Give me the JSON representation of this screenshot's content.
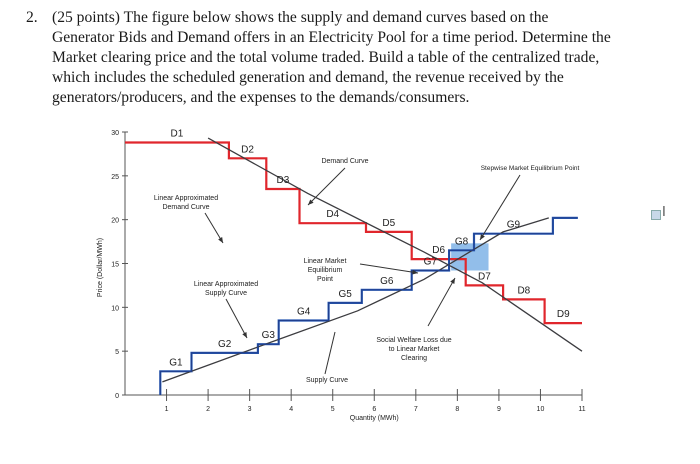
{
  "question": {
    "number": "2.",
    "lines": [
      "(25 points) The figure below shows the supply and demand curves based on the",
      "Generator Bids and Demand offers in an Electricity Pool for a time period. Determine the",
      "Market clearing price and the total volume traded. Build a table of the centralized trade,",
      "which includes the scheduled generation and demand, the revenue received by the",
      "generators/producers, and the expenses to the demands/consumers."
    ]
  },
  "chart_data": {
    "type": "line",
    "xlabel": "Quantity (MWh)",
    "ylabel": "Price (Dollar/MWh)",
    "xlim": [
      0,
      11
    ],
    "ylim": [
      0,
      30
    ],
    "x_ticks": [
      "1",
      "2",
      "3",
      "4",
      "5",
      "6",
      "7",
      "8",
      "9",
      "10",
      "11"
    ],
    "y_ticks": [
      "0",
      "5",
      "10",
      "15",
      "20",
      "25",
      "30"
    ],
    "colors": {
      "stepwise": "#e0262c",
      "linear": "#3c3c40",
      "shaded": "#7fb3e6",
      "axis": "#555555"
    },
    "series": [
      {
        "name": "Demand Curve",
        "step_labels": [
          "D1",
          "D2",
          "D3",
          "D4",
          "D5",
          "D6",
          "D7",
          "D8",
          "D9"
        ],
        "points": [
          [
            0,
            28.8
          ],
          [
            2.5,
            28.8
          ],
          [
            2.5,
            27
          ],
          [
            3.4,
            27
          ],
          [
            3.4,
            23.5
          ],
          [
            4.2,
            23.5
          ],
          [
            4.2,
            19.6
          ],
          [
            5.8,
            19.6
          ],
          [
            5.8,
            18.6
          ],
          [
            6.9,
            18.6
          ],
          [
            6.9,
            15.5
          ],
          [
            8.2,
            15.5
          ],
          [
            8.2,
            12.5
          ],
          [
            9.1,
            12.5
          ],
          [
            9.1,
            10.9
          ],
          [
            10.1,
            10.9
          ],
          [
            10.1,
            8.2
          ],
          [
            11,
            8.2
          ]
        ]
      },
      {
        "name": "Supply",
        "step_labels": [
          "G1",
          "G2",
          "G3",
          "G4",
          "G5",
          "G6",
          "G7",
          "G8",
          "G9"
        ],
        "points": [
          [
            0.85,
            0
          ],
          [
            0.85,
            2.7
          ],
          [
            1.6,
            2.7
          ],
          [
            1.6,
            4.8
          ],
          [
            3.2,
            4.8
          ],
          [
            3.2,
            5.8
          ],
          [
            3.7,
            5.8
          ],
          [
            3.7,
            8.5
          ],
          [
            4.9,
            8.5
          ],
          [
            4.9,
            10.5
          ],
          [
            5.7,
            10.5
          ],
          [
            5.7,
            12.0
          ],
          [
            6.9,
            12.0
          ],
          [
            6.9,
            14.2
          ],
          [
            7.8,
            14.2
          ],
          [
            7.8,
            16.5
          ],
          [
            8.4,
            16.5
          ],
          [
            8.4,
            18.4
          ],
          [
            10.3,
            18.4
          ],
          [
            10.3,
            20.2
          ],
          [
            10.9,
            20.2
          ]
        ]
      },
      {
        "name": "Linear Approximated Demand Curve",
        "points": [
          [
            2.0,
            29.3
          ],
          [
            4.4,
            23.0
          ],
          [
            7.2,
            16.3
          ],
          [
            8.6,
            12.8
          ],
          [
            11,
            5.0
          ]
        ]
      },
      {
        "name": "Linear Approximated Supply Curve",
        "points": [
          [
            0.9,
            1.5
          ],
          [
            3.5,
            6.0
          ],
          [
            5.6,
            9.6
          ],
          [
            7.2,
            13.2
          ],
          [
            9.1,
            18.6
          ],
          [
            10.2,
            20.2
          ]
        ]
      }
    ],
    "shaded_region": {
      "x": [
        7.85,
        8.75
      ],
      "y": [
        14.2,
        17.3
      ]
    },
    "annotations": [
      "Demand Curve",
      "Stepwise Market Equilibrium Point",
      "Linear Approximated Demand Curve",
      "Linear Market Equilibrium Point",
      "Linear Approximated Supply Curve",
      "Social Welfare Loss due to Linear Market Clearing",
      "Supply Curve"
    ]
  }
}
